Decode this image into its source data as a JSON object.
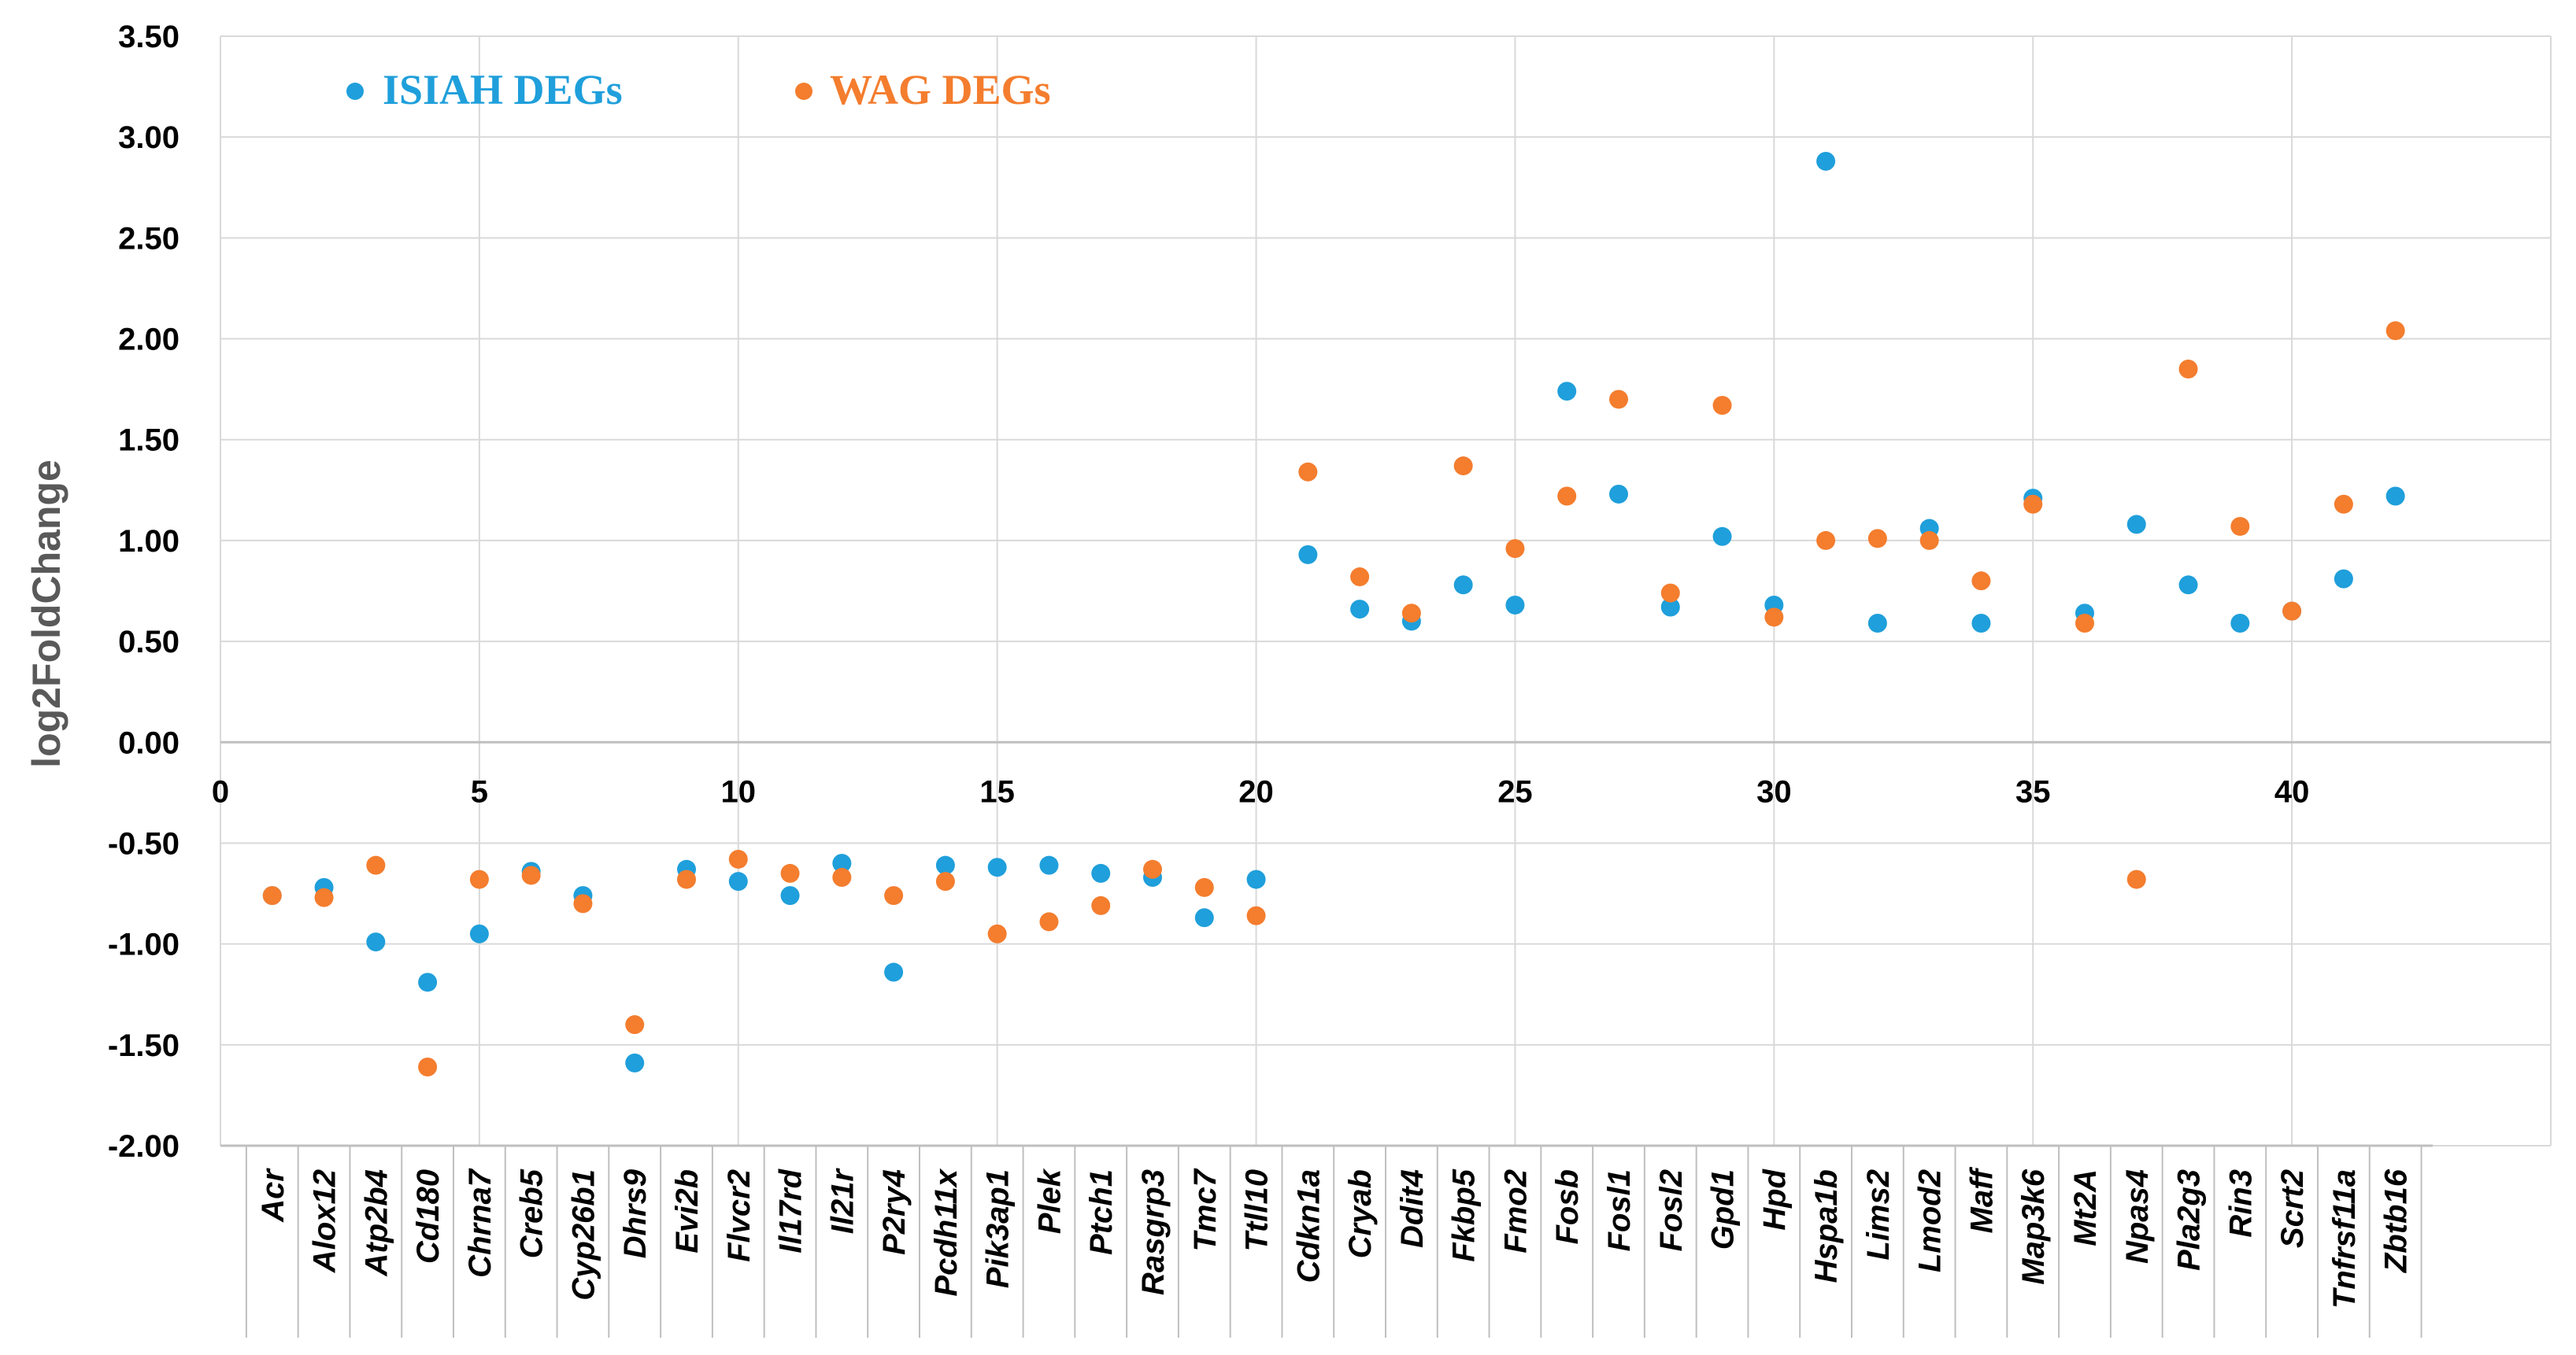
{
  "chart_data": {
    "type": "scatter",
    "ylabel": "log2FoldChange",
    "xlabel": "",
    "ylim": [
      -2.0,
      3.5
    ],
    "xlim": [
      0,
      45
    ],
    "y_ticks": [
      "3.50",
      "3.00",
      "2.50",
      "2.00",
      "1.50",
      "1.00",
      "0.50",
      "0.00",
      "-0.50",
      "-1.00",
      "-1.50",
      "-2.00"
    ],
    "x_ticks": [
      "0",
      "5",
      "10",
      "15",
      "20",
      "25",
      "30",
      "35",
      "40"
    ],
    "grid": true,
    "legend_position": "top-left",
    "genes": [
      "Acr",
      "Alox12",
      "Atp2b4",
      "Cd180",
      "Chrna7",
      "Creb5",
      "Cyp26b1",
      "Dhrs9",
      "Evi2b",
      "Flvcr2",
      "Il17rd",
      "Il21r",
      "P2ry4",
      "Pcdh11x",
      "Pik3ap1",
      "Plek",
      "Ptch1",
      "Rasgrp3",
      "Tmc7",
      "Ttll10",
      "Cdkn1a",
      "Cryab",
      "Ddit4",
      "Fkbp5",
      "Fmo2",
      "Fosb",
      "Fosl1",
      "Fosl2",
      "Gpd1",
      "Hpd",
      "Hspa1b",
      "Lims2",
      "Lmod2",
      "Maff",
      "Map3k6",
      "Mt2A",
      "Npas4",
      "Pla2g3",
      "Rin3",
      "Scrt2",
      "Tnfrsf11a",
      "Zbtb16"
    ],
    "series": [
      {
        "name": "ISIAH DEGs",
        "color": "#1f9fdb",
        "x": [
          1,
          2,
          3,
          4,
          5,
          6,
          7,
          8,
          9,
          10,
          11,
          12,
          13,
          14,
          15,
          16,
          17,
          18,
          19,
          20,
          21,
          22,
          23,
          24,
          25,
          26,
          27,
          28,
          29,
          30,
          31,
          32,
          33,
          34,
          35,
          36,
          37,
          38,
          39,
          40,
          41,
          42
        ],
        "y": [
          -0.76,
          -0.72,
          -0.99,
          -1.19,
          -0.95,
          -0.64,
          -0.76,
          -1.59,
          -0.63,
          -0.69,
          -0.76,
          -0.6,
          -1.14,
          -0.61,
          -0.62,
          -0.61,
          -0.65,
          -0.67,
          -0.87,
          -0.68,
          0.93,
          0.66,
          0.6,
          0.78,
          0.68,
          1.74,
          1.23,
          0.67,
          1.02,
          0.68,
          2.88,
          0.59,
          1.06,
          0.59,
          1.21,
          0.64,
          1.08,
          0.78,
          0.59,
          0.65,
          0.81,
          1.22
        ]
      },
      {
        "name": "WAG DEGs",
        "color": "#f47d2e",
        "x": [
          1,
          2,
          3,
          4,
          5,
          6,
          7,
          8,
          9,
          10,
          11,
          12,
          13,
          14,
          15,
          16,
          17,
          18,
          19,
          20,
          21,
          22,
          23,
          24,
          25,
          26,
          27,
          28,
          29,
          30,
          31,
          32,
          33,
          34,
          35,
          36,
          37,
          38,
          39,
          40,
          41,
          42
        ],
        "y": [
          -0.76,
          -0.77,
          -0.61,
          -1.61,
          -0.68,
          -0.66,
          -0.8,
          -1.4,
          -0.68,
          -0.58,
          -0.65,
          -0.67,
          -0.76,
          -0.69,
          -0.95,
          -0.89,
          -0.81,
          -0.63,
          -0.72,
          -0.86,
          1.34,
          0.82,
          0.64,
          1.37,
          0.96,
          1.22,
          1.7,
          0.74,
          1.67,
          0.62,
          1.0,
          1.01,
          1.0,
          0.8,
          1.18,
          0.59,
          -0.68,
          1.85,
          1.07,
          0.65,
          1.18,
          2.04
        ]
      }
    ]
  }
}
